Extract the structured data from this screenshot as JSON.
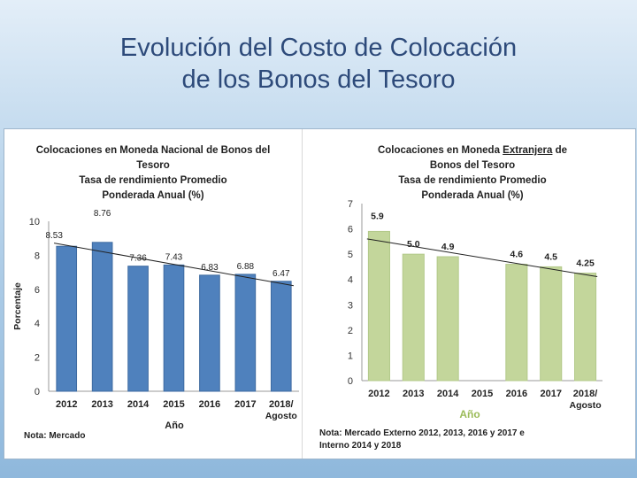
{
  "slide": {
    "title_line1": "Evolución del Costo de Colocación",
    "title_line2": "de los Bonos del Tesoro"
  },
  "chart_data": [
    {
      "type": "bar",
      "title_lines": [
        "Colocaciones en Moneda Nacional de Bonos del",
        "Tesoro",
        "Tasa de rendimiento Promedio",
        "Ponderada Anual (%)"
      ],
      "categories": [
        "2012",
        "2013",
        "2014",
        "2015",
        "2016",
        "2017",
        "2018/"
      ],
      "category_sub": [
        "",
        "",
        "",
        "",
        "",
        "",
        "Agosto"
      ],
      "values": [
        8.53,
        8.76,
        7.36,
        7.43,
        6.83,
        6.88,
        6.47
      ],
      "value_labels": [
        "8.53",
        "8.76",
        "7.36",
        "7.43",
        "6.83",
        "6.88",
        "6.47"
      ],
      "ylim": [
        0,
        10
      ],
      "yticks": [
        0,
        2,
        4,
        6,
        8,
        10
      ],
      "ylabel": "Porcentaje",
      "xlabel": "Año",
      "trendline": true,
      "color": "#4f81bd",
      "note": "Nota: Mercado"
    },
    {
      "type": "bar",
      "title_lines": [
        "Colocaciones en Moneda Extranjera de",
        "Bonos del Tesoro",
        "Tasa de rendimiento Promedio",
        "Ponderada Anual (%)"
      ],
      "title_underline_word": "Extranjera",
      "categories": [
        "2012",
        "2013",
        "2014",
        "2015",
        "2016",
        "2017",
        "2018/"
      ],
      "category_sub": [
        "",
        "",
        "",
        "",
        "",
        "",
        "Agosto"
      ],
      "values": [
        5.9,
        5.0,
        4.9,
        null,
        4.6,
        4.5,
        4.25
      ],
      "value_labels": [
        "5.9",
        "5.0",
        "4.9",
        "",
        "4.6",
        "4.5",
        "4.25"
      ],
      "ylim": [
        0,
        7
      ],
      "yticks": [
        0,
        1,
        2,
        3,
        4,
        5,
        6,
        7
      ],
      "xlabel": "Año",
      "trendline": true,
      "color": "#c3d69b",
      "xlabel_color": "#9bbb59",
      "note_lines": [
        "Nota: Mercado Externo 2012, 2013, 2016 y 2017 e",
        "Interno 2014 y 2018"
      ]
    }
  ]
}
